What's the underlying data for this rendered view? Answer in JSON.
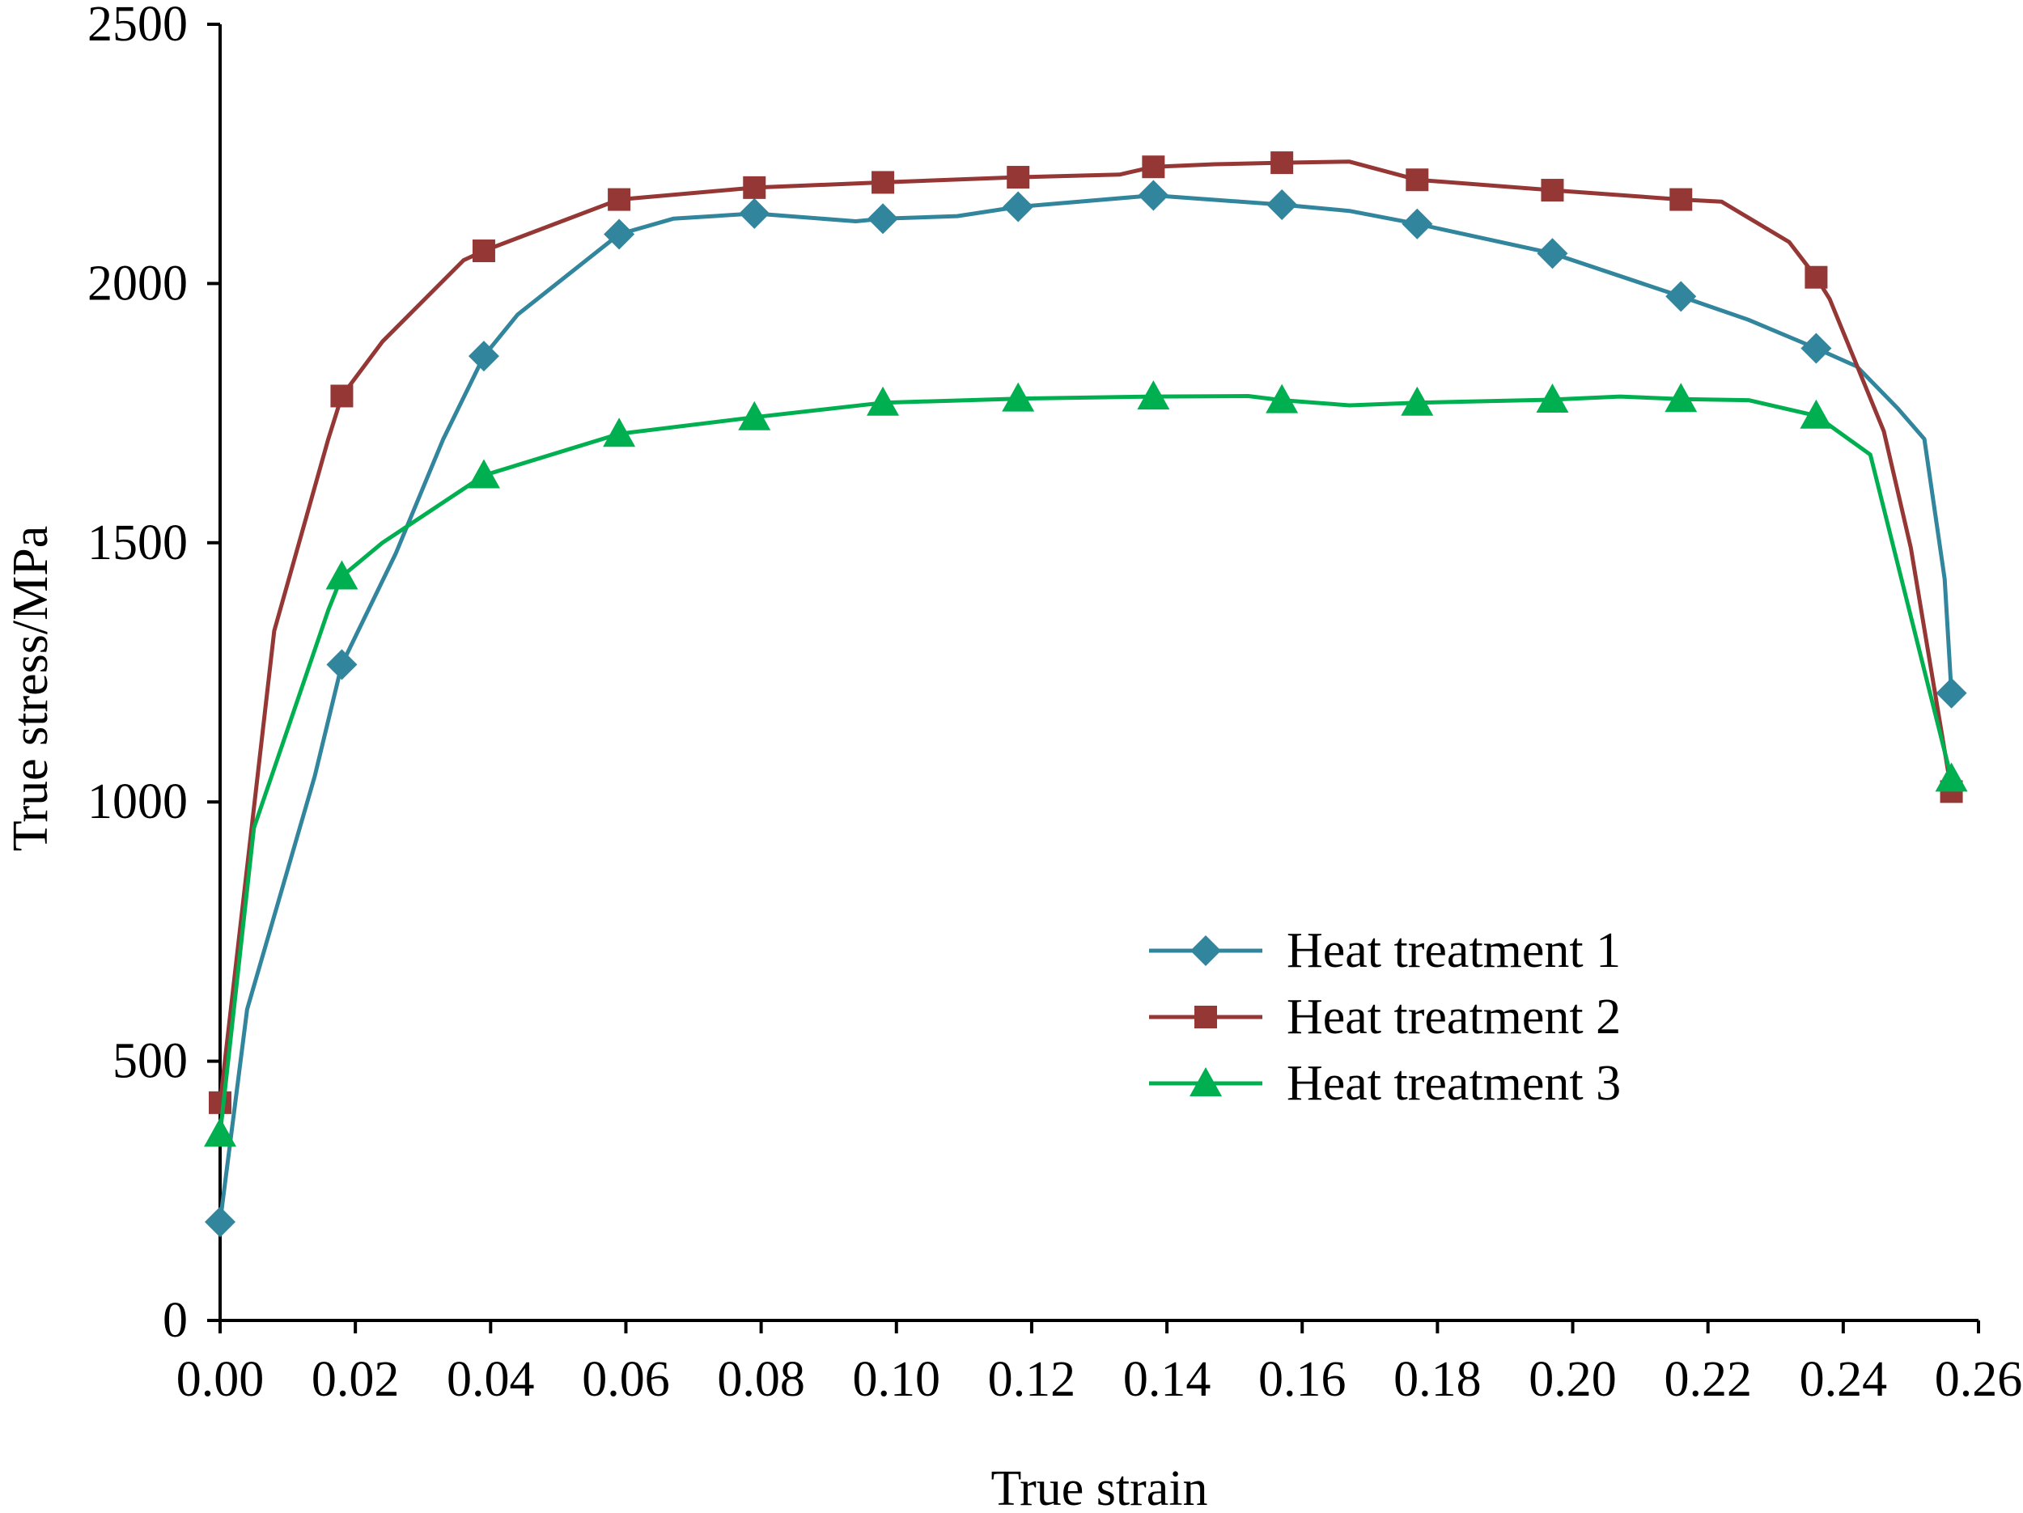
{
  "chart_data": {
    "type": "line",
    "title": "",
    "xlabel": "True strain",
    "ylabel": "True stress/MPa",
    "xlim": [
      0,
      0.26
    ],
    "ylim": [
      0,
      2500
    ],
    "x_ticks": [
      "0.00",
      "0.02",
      "0.04",
      "0.06",
      "0.08",
      "0.10",
      "0.12",
      "0.14",
      "0.16",
      "0.18",
      "0.20",
      "0.22",
      "0.24",
      "0.26"
    ],
    "y_ticks": [
      "0",
      "500",
      "1000",
      "1500",
      "2000",
      "2500"
    ],
    "grid": false,
    "legend_position": "bottom-right",
    "series": [
      {
        "name": "Heat treatment 1",
        "color": "#31859c",
        "marker": "diamond",
        "points": [
          [
            0.0,
            190
          ],
          [
            0.004,
            600
          ],
          [
            0.014,
            1050
          ],
          [
            0.018,
            1265
          ],
          [
            0.026,
            1480
          ],
          [
            0.033,
            1700
          ],
          [
            0.039,
            1860
          ],
          [
            0.044,
            1940
          ],
          [
            0.059,
            2095
          ],
          [
            0.067,
            2125
          ],
          [
            0.079,
            2135
          ],
          [
            0.094,
            2120
          ],
          [
            0.098,
            2125
          ],
          [
            0.109,
            2130
          ],
          [
            0.118,
            2148
          ],
          [
            0.138,
            2170
          ],
          [
            0.157,
            2152
          ],
          [
            0.167,
            2140
          ],
          [
            0.177,
            2115
          ],
          [
            0.197,
            2058
          ],
          [
            0.216,
            1975
          ],
          [
            0.226,
            1930
          ],
          [
            0.236,
            1875
          ],
          [
            0.242,
            1840
          ],
          [
            0.248,
            1760
          ],
          [
            0.252,
            1700
          ],
          [
            0.255,
            1430
          ],
          [
            0.256,
            1210
          ]
        ]
      },
      {
        "name": "Heat treatment 2",
        "color": "#953735",
        "marker": "square",
        "points": [
          [
            0.0,
            420
          ],
          [
            0.008,
            1330
          ],
          [
            0.016,
            1700
          ],
          [
            0.018,
            1783
          ],
          [
            0.024,
            1888
          ],
          [
            0.036,
            2045
          ],
          [
            0.039,
            2063
          ],
          [
            0.059,
            2162
          ],
          [
            0.079,
            2185
          ],
          [
            0.098,
            2195
          ],
          [
            0.118,
            2205
          ],
          [
            0.133,
            2210
          ],
          [
            0.138,
            2225
          ],
          [
            0.147,
            2230
          ],
          [
            0.157,
            2233
          ],
          [
            0.167,
            2235
          ],
          [
            0.177,
            2200
          ],
          [
            0.197,
            2180
          ],
          [
            0.216,
            2162
          ],
          [
            0.222,
            2158
          ],
          [
            0.232,
            2080
          ],
          [
            0.236,
            2012
          ],
          [
            0.238,
            1970
          ],
          [
            0.246,
            1715
          ],
          [
            0.25,
            1490
          ],
          [
            0.256,
            1020
          ]
        ]
      },
      {
        "name": "Heat treatment 3",
        "color": "#00b050",
        "marker": "triangle",
        "points": [
          [
            0.0,
            360
          ],
          [
            0.005,
            950
          ],
          [
            0.016,
            1370
          ],
          [
            0.018,
            1435
          ],
          [
            0.024,
            1500
          ],
          [
            0.039,
            1630
          ],
          [
            0.059,
            1710
          ],
          [
            0.079,
            1742
          ],
          [
            0.098,
            1770
          ],
          [
            0.118,
            1778
          ],
          [
            0.138,
            1782
          ],
          [
            0.152,
            1783
          ],
          [
            0.157,
            1775
          ],
          [
            0.167,
            1765
          ],
          [
            0.177,
            1770
          ],
          [
            0.197,
            1776
          ],
          [
            0.207,
            1782
          ],
          [
            0.216,
            1777
          ],
          [
            0.226,
            1775
          ],
          [
            0.236,
            1745
          ],
          [
            0.244,
            1670
          ],
          [
            0.256,
            1045
          ]
        ]
      }
    ]
  }
}
